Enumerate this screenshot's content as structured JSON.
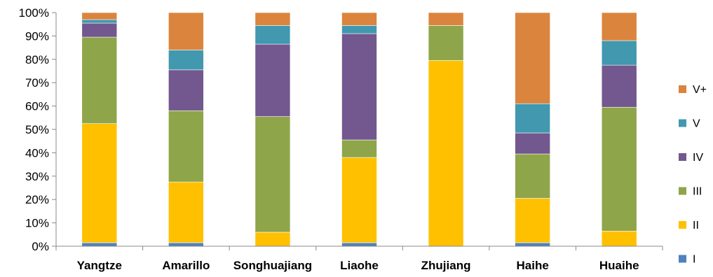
{
  "chart_data": {
    "type": "bar",
    "stacked": true,
    "categories": [
      "Yangtze",
      "Amarillo",
      "Songhuajiang",
      "Liaohe",
      "Zhujiang",
      "Haihe",
      "Huaihe"
    ],
    "series": [
      {
        "name": "I",
        "color": "#4F81BD",
        "values": [
          1.5,
          1.5,
          0,
          1.5,
          0,
          1.5,
          0
        ]
      },
      {
        "name": "II",
        "color": "#FFC000",
        "values": [
          51,
          26,
          6,
          36.5,
          79.5,
          19,
          6.5
        ]
      },
      {
        "name": "III",
        "color": "#8EA54A",
        "values": [
          37,
          30.5,
          49.5,
          7.5,
          15,
          19,
          53
        ]
      },
      {
        "name": "IV",
        "color": "#72588E",
        "values": [
          6,
          17.5,
          31,
          45.5,
          0,
          9,
          18
        ]
      },
      {
        "name": "V",
        "color": "#4198AF",
        "values": [
          1.5,
          8.5,
          8,
          3.5,
          0,
          12.5,
          10.5
        ]
      },
      {
        "name": "V+",
        "color": "#DB843D",
        "values": [
          3,
          16,
          5.5,
          5.5,
          5.5,
          39,
          12
        ]
      }
    ],
    "y_ticks": [
      "0%",
      "10%",
      "20%",
      "30%",
      "40%",
      "50%",
      "60%",
      "70%",
      "80%",
      "90%",
      "100%"
    ],
    "ylim": [
      0,
      100
    ],
    "grid": false,
    "legend_position": "right",
    "legend_order": [
      "V+",
      "V",
      "IV",
      "III",
      "II",
      "I"
    ],
    "title": "",
    "xlabel": "",
    "ylabel": ""
  }
}
